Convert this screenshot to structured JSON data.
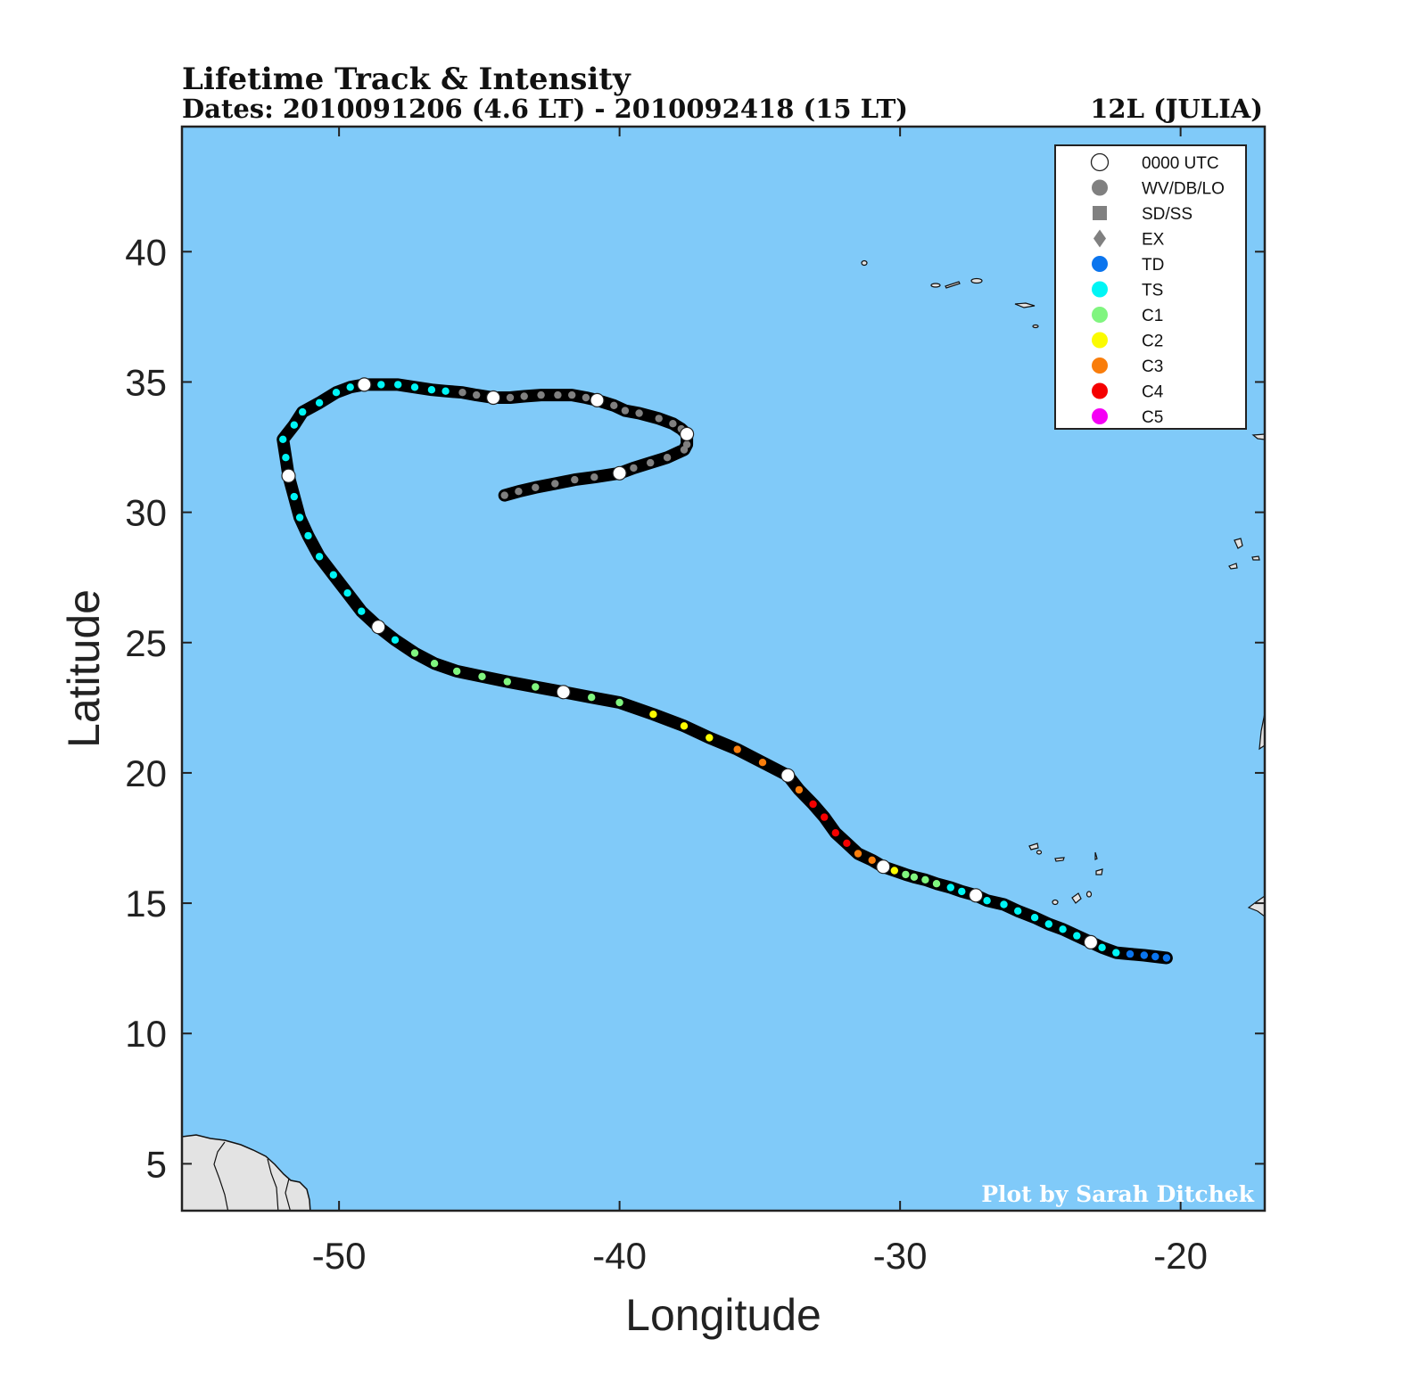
{
  "header": {
    "title": "Lifetime Track & Intensity",
    "dates": "Dates: 2010091206 (4.6 LT) - 2010092418 (15 LT)",
    "storm": "12L (JULIA)"
  },
  "credit": "Plot by Sarah Ditchek",
  "colors": {
    "ocean": "#80caf9",
    "land": "#e3e3e3",
    "track": "#000000",
    "WV/DB/LO": "#808080",
    "TD": "#0b75ee",
    "TS": "#00f5f5",
    "C1": "#80f57f",
    "C2": "#fbfb00",
    "C3": "#f97d0b",
    "C4": "#f50000",
    "C5": "#f500f5",
    "0000 UTC": "#ffffff"
  },
  "legend": [
    {
      "label": "0000 UTC",
      "marker": "circle-open-large"
    },
    {
      "label": "WV/DB/LO",
      "marker": "circle"
    },
    {
      "label": "SD/SS",
      "marker": "square"
    },
    {
      "label": "EX",
      "marker": "diamond"
    },
    {
      "label": "TD",
      "marker": "circle"
    },
    {
      "label": "TS",
      "marker": "circle"
    },
    {
      "label": "C1",
      "marker": "circle"
    },
    {
      "label": "C2",
      "marker": "circle"
    },
    {
      "label": "C3",
      "marker": "circle"
    },
    {
      "label": "C4",
      "marker": "circle"
    },
    {
      "label": "C5",
      "marker": "circle"
    }
  ],
  "chart_data": {
    "type": "scatter",
    "title": "Lifetime Track & Intensity",
    "xlabel": "Longitude",
    "ylabel": "Latitude",
    "xlim": [
      -55.6,
      -17.0
    ],
    "ylim": [
      3.2,
      44.8
    ],
    "x_ticks": [
      -50,
      -40,
      -30,
      -20
    ],
    "y_ticks": [
      5,
      10,
      15,
      20,
      25,
      30,
      35,
      40
    ],
    "legend_position": "top-right",
    "track": [
      {
        "lon": -20.5,
        "lat": 12.9,
        "cat": "TD"
      },
      {
        "lon": -20.9,
        "lat": 12.95,
        "cat": "TD"
      },
      {
        "lon": -21.3,
        "lat": 13.0,
        "cat": "TD"
      },
      {
        "lon": -21.8,
        "lat": 13.05,
        "cat": "TD"
      },
      {
        "lon": -22.3,
        "lat": 13.1,
        "cat": "TS"
      },
      {
        "lon": -22.8,
        "lat": 13.3,
        "cat": "TS"
      },
      {
        "lon": -23.2,
        "lat": 13.5,
        "cat": "TS",
        "utc00": true
      },
      {
        "lon": -23.7,
        "lat": 13.75,
        "cat": "TS"
      },
      {
        "lon": -24.2,
        "lat": 14.0,
        "cat": "TS"
      },
      {
        "lon": -24.7,
        "lat": 14.2,
        "cat": "TS"
      },
      {
        "lon": -25.2,
        "lat": 14.45,
        "cat": "TS"
      },
      {
        "lon": -25.8,
        "lat": 14.7,
        "cat": "TS"
      },
      {
        "lon": -26.3,
        "lat": 14.95,
        "cat": "TS"
      },
      {
        "lon": -26.9,
        "lat": 15.1,
        "cat": "TS"
      },
      {
        "lon": -27.3,
        "lat": 15.3,
        "cat": "TS",
        "utc00": true
      },
      {
        "lon": -27.8,
        "lat": 15.45,
        "cat": "TS"
      },
      {
        "lon": -28.2,
        "lat": 15.6,
        "cat": "TS"
      },
      {
        "lon": -28.7,
        "lat": 15.75,
        "cat": "C1"
      },
      {
        "lon": -29.1,
        "lat": 15.9,
        "cat": "C1"
      },
      {
        "lon": -29.5,
        "lat": 16.0,
        "cat": "C1"
      },
      {
        "lon": -29.8,
        "lat": 16.1,
        "cat": "C1"
      },
      {
        "lon": -30.2,
        "lat": 16.25,
        "cat": "C2"
      },
      {
        "lon": -30.6,
        "lat": 16.4,
        "cat": "C3",
        "utc00": true
      },
      {
        "lon": -31.0,
        "lat": 16.65,
        "cat": "C3"
      },
      {
        "lon": -31.5,
        "lat": 16.9,
        "cat": "C3"
      },
      {
        "lon": -31.9,
        "lat": 17.3,
        "cat": "C4"
      },
      {
        "lon": -32.3,
        "lat": 17.7,
        "cat": "C4"
      },
      {
        "lon": -32.7,
        "lat": 18.3,
        "cat": "C4"
      },
      {
        "lon": -33.1,
        "lat": 18.8,
        "cat": "C4"
      },
      {
        "lon": -33.6,
        "lat": 19.35,
        "cat": "C3"
      },
      {
        "lon": -34.0,
        "lat": 19.9,
        "cat": "C3",
        "utc00": true
      },
      {
        "lon": -34.9,
        "lat": 20.4,
        "cat": "C3"
      },
      {
        "lon": -35.8,
        "lat": 20.9,
        "cat": "C3"
      },
      {
        "lon": -36.8,
        "lat": 21.35,
        "cat": "C2"
      },
      {
        "lon": -37.7,
        "lat": 21.8,
        "cat": "C2"
      },
      {
        "lon": -38.8,
        "lat": 22.25,
        "cat": "C2"
      },
      {
        "lon": -40.0,
        "lat": 22.7,
        "cat": "C1"
      },
      {
        "lon": -41.0,
        "lat": 22.9,
        "cat": "C1"
      },
      {
        "lon": -42.0,
        "lat": 23.1,
        "cat": "C1",
        "utc00": true
      },
      {
        "lon": -43.0,
        "lat": 23.3,
        "cat": "C1"
      },
      {
        "lon": -44.0,
        "lat": 23.5,
        "cat": "C1"
      },
      {
        "lon": -44.9,
        "lat": 23.7,
        "cat": "C1"
      },
      {
        "lon": -45.8,
        "lat": 23.9,
        "cat": "C1"
      },
      {
        "lon": -46.6,
        "lat": 24.2,
        "cat": "C1"
      },
      {
        "lon": -47.3,
        "lat": 24.6,
        "cat": "C1"
      },
      {
        "lon": -48.0,
        "lat": 25.1,
        "cat": "TS"
      },
      {
        "lon": -48.6,
        "lat": 25.6,
        "cat": "TS",
        "utc00": true
      },
      {
        "lon": -49.2,
        "lat": 26.2,
        "cat": "TS"
      },
      {
        "lon": -49.7,
        "lat": 26.9,
        "cat": "TS"
      },
      {
        "lon": -50.2,
        "lat": 27.6,
        "cat": "TS"
      },
      {
        "lon": -50.7,
        "lat": 28.3,
        "cat": "TS"
      },
      {
        "lon": -51.1,
        "lat": 29.1,
        "cat": "TS"
      },
      {
        "lon": -51.4,
        "lat": 29.8,
        "cat": "TS"
      },
      {
        "lon": -51.6,
        "lat": 30.6,
        "cat": "TS"
      },
      {
        "lon": -51.8,
        "lat": 31.4,
        "cat": "TS",
        "utc00": true
      },
      {
        "lon": -51.9,
        "lat": 32.1,
        "cat": "TS"
      },
      {
        "lon": -52.0,
        "lat": 32.8,
        "cat": "TS"
      },
      {
        "lon": -51.6,
        "lat": 33.35,
        "cat": "TS"
      },
      {
        "lon": -51.3,
        "lat": 33.85,
        "cat": "TS"
      },
      {
        "lon": -50.7,
        "lat": 34.2,
        "cat": "TS"
      },
      {
        "lon": -50.1,
        "lat": 34.6,
        "cat": "TS"
      },
      {
        "lon": -49.6,
        "lat": 34.8,
        "cat": "TS"
      },
      {
        "lon": -49.1,
        "lat": 34.9,
        "cat": "TS",
        "utc00": true
      },
      {
        "lon": -48.5,
        "lat": 34.9,
        "cat": "TS"
      },
      {
        "lon": -47.9,
        "lat": 34.9,
        "cat": "TS"
      },
      {
        "lon": -47.3,
        "lat": 34.8,
        "cat": "TS"
      },
      {
        "lon": -46.7,
        "lat": 34.7,
        "cat": "TS"
      },
      {
        "lon": -46.2,
        "lat": 34.65,
        "cat": "TS"
      },
      {
        "lon": -45.6,
        "lat": 34.6,
        "cat": "WV/DB/LO"
      },
      {
        "lon": -45.1,
        "lat": 34.5,
        "cat": "WV/DB/LO"
      },
      {
        "lon": -44.5,
        "lat": 34.4,
        "cat": "WV/DB/LO",
        "utc00": true
      },
      {
        "lon": -43.9,
        "lat": 34.4,
        "cat": "WV/DB/LO"
      },
      {
        "lon": -43.4,
        "lat": 34.45,
        "cat": "WV/DB/LO"
      },
      {
        "lon": -42.8,
        "lat": 34.5,
        "cat": "WV/DB/LO"
      },
      {
        "lon": -42.2,
        "lat": 34.5,
        "cat": "WV/DB/LO"
      },
      {
        "lon": -41.7,
        "lat": 34.5,
        "cat": "WV/DB/LO"
      },
      {
        "lon": -41.2,
        "lat": 34.4,
        "cat": "WV/DB/LO"
      },
      {
        "lon": -40.8,
        "lat": 34.3,
        "cat": "WV/DB/LO",
        "utc00": true
      },
      {
        "lon": -40.2,
        "lat": 34.1,
        "cat": "WV/DB/LO"
      },
      {
        "lon": -39.8,
        "lat": 33.9,
        "cat": "WV/DB/LO"
      },
      {
        "lon": -39.3,
        "lat": 33.8,
        "cat": "WV/DB/LO"
      },
      {
        "lon": -38.6,
        "lat": 33.6,
        "cat": "WV/DB/LO"
      },
      {
        "lon": -38.1,
        "lat": 33.4,
        "cat": "WV/DB/LO"
      },
      {
        "lon": -37.8,
        "lat": 33.2,
        "cat": "WV/DB/LO"
      },
      {
        "lon": -37.6,
        "lat": 33.0,
        "cat": "WV/DB/LO",
        "utc00": true
      },
      {
        "lon": -37.6,
        "lat": 32.6,
        "cat": "WV/DB/LO"
      },
      {
        "lon": -37.7,
        "lat": 32.4,
        "cat": "WV/DB/LO"
      },
      {
        "lon": -38.3,
        "lat": 32.1,
        "cat": "WV/DB/LO"
      },
      {
        "lon": -38.9,
        "lat": 31.9,
        "cat": "WV/DB/LO"
      },
      {
        "lon": -39.5,
        "lat": 31.7,
        "cat": "WV/DB/LO"
      },
      {
        "lon": -40.0,
        "lat": 31.5,
        "cat": "WV/DB/LO",
        "utc00": true
      },
      {
        "lon": -40.9,
        "lat": 31.35,
        "cat": "WV/DB/LO"
      },
      {
        "lon": -41.6,
        "lat": 31.25,
        "cat": "WV/DB/LO"
      },
      {
        "lon": -42.3,
        "lat": 31.1,
        "cat": "WV/DB/LO"
      },
      {
        "lon": -43.0,
        "lat": 30.95,
        "cat": "WV/DB/LO"
      },
      {
        "lon": -43.6,
        "lat": 30.8,
        "cat": "WV/DB/LO"
      },
      {
        "lon": -44.1,
        "lat": 30.65,
        "cat": "WV/DB/LO"
      }
    ]
  }
}
